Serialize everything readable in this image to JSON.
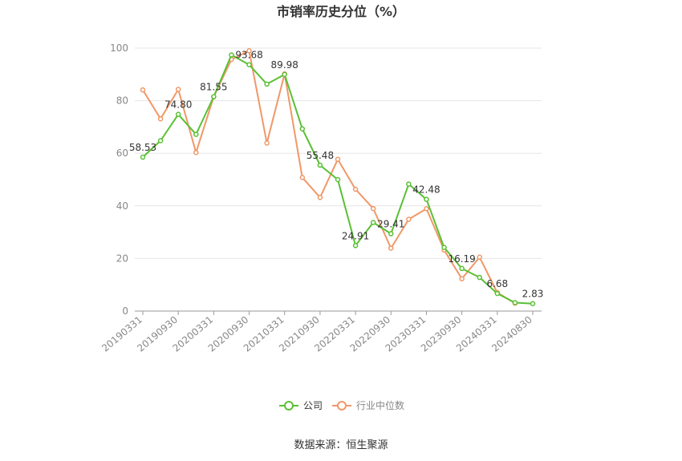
{
  "chart_data": {
    "type": "line",
    "title": "市销率历史分位（%）",
    "source": "数据来源：恒生聚源",
    "ylim": [
      0,
      100
    ],
    "yticks": [
      "0",
      "20",
      "40",
      "60",
      "80",
      "100"
    ],
    "grid": true,
    "legend_position": "bottom",
    "x": [
      "20190331",
      "20190630",
      "20190930",
      "20191231",
      "20200331",
      "20200630",
      "20200930",
      "20201231",
      "20210331",
      "20210630",
      "20210930",
      "20211231",
      "20220331",
      "20220630",
      "20220930",
      "20221231",
      "20230331",
      "20230630",
      "20230930",
      "20231231",
      "20240331",
      "20240630",
      "20240830"
    ],
    "xticks": [
      "20190331",
      "20190930",
      "20200331",
      "20200930",
      "20210331",
      "20210930",
      "20220331",
      "20220930",
      "20230331",
      "20230930",
      "20240331",
      "20240830"
    ],
    "series": [
      {
        "name": "公司",
        "color": "#5ac034",
        "values": [
          58.53,
          64.8,
          74.8,
          67.2,
          81.55,
          97.4,
          93.68,
          86.3,
          89.98,
          69.3,
          55.48,
          50.0,
          24.91,
          33.7,
          29.41,
          48.3,
          42.48,
          24.2,
          16.19,
          12.8,
          6.68,
          3.2,
          2.83
        ],
        "labels": {
          "0": "58.53",
          "2": "74.80",
          "4": "81.55",
          "6": "93.68",
          "8": "89.98",
          "10": "55.48",
          "12": "24.91",
          "14": "29.41",
          "16": "42.48",
          "18": "16.19",
          "20": "6.68",
          "22": "2.83"
        }
      },
      {
        "name": "行业中位数",
        "color": "#f09868",
        "values": [
          84.1,
          73.1,
          84.3,
          60.3,
          81.5,
          95.7,
          99.0,
          63.9,
          90.2,
          50.8,
          43.2,
          57.7,
          46.3,
          39.0,
          23.9,
          34.9,
          38.9,
          23.2,
          12.3,
          20.5,
          7.0,
          3.0,
          null
        ]
      }
    ]
  }
}
